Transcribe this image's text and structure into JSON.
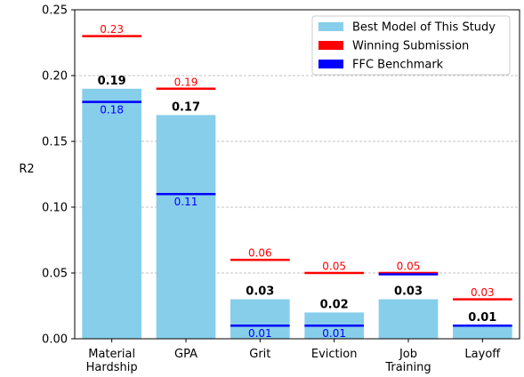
{
  "chart_data": {
    "type": "bar",
    "categories": [
      "Material\nHardship",
      "GPA",
      "Grit",
      "Eviction",
      "Job\nTraining",
      "Layoff"
    ],
    "series": [
      {
        "name": "Best Model of This Study",
        "kind": "bar",
        "color": "#87ceeb",
        "values": [
          0.19,
          0.17,
          0.03,
          0.02,
          0.03,
          0.01
        ],
        "labels": [
          "0.19",
          "0.17",
          "0.03",
          "0.02",
          "0.03",
          "0.01"
        ],
        "label_color": "#000000"
      },
      {
        "name": "Winning Submission",
        "kind": "hline",
        "color": "#ff0000",
        "values": [
          0.23,
          0.19,
          0.06,
          0.05,
          0.05,
          0.03
        ],
        "labels": [
          "0.23",
          "0.19",
          "0.06",
          "0.05",
          "0.05",
          "0.03"
        ],
        "label_color": "#ff0000"
      },
      {
        "name": "FFC Benchmark",
        "kind": "hline",
        "color": "#0000ff",
        "values": [
          0.18,
          0.11,
          0.01,
          0.01,
          0.049,
          0.01
        ],
        "labels": [
          "0.18",
          "0.11",
          "0.01",
          "0.01",
          "",
          ""
        ],
        "label_color": "#0000ff"
      }
    ],
    "ylabel": "R2",
    "xlabel": "",
    "ylim": [
      0,
      0.25
    ],
    "yticks": [
      0.0,
      0.05,
      0.1,
      0.15,
      0.2,
      0.25
    ],
    "ytick_labels": [
      "0.00",
      "0.05",
      "0.10",
      "0.15",
      "0.20",
      "0.25"
    ],
    "grid": "y-dashed",
    "legend": "top-right"
  }
}
